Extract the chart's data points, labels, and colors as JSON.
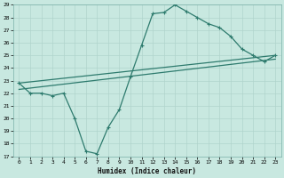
{
  "title": "",
  "xlabel": "Humidex (Indice chaleur)",
  "ylabel": "",
  "bg_color": "#c8e8e0",
  "line_color": "#2e7b6e",
  "grid_color": "#b0d4cc",
  "ylim": [
    17,
    29
  ],
  "xlim": [
    -0.5,
    23.5
  ],
  "yticks": [
    17,
    18,
    19,
    20,
    21,
    22,
    23,
    24,
    25,
    26,
    27,
    28,
    29
  ],
  "xticks": [
    0,
    1,
    2,
    3,
    4,
    5,
    6,
    7,
    8,
    9,
    10,
    11,
    12,
    13,
    14,
    15,
    16,
    17,
    18,
    19,
    20,
    21,
    22,
    23
  ],
  "line1_x": [
    0,
    1,
    2,
    3,
    4,
    5,
    6,
    7,
    8,
    9,
    10,
    11,
    12,
    13,
    14,
    15,
    16,
    17,
    18,
    19,
    20,
    21,
    22,
    23
  ],
  "line1_y": [
    22.8,
    22.0,
    22.0,
    21.8,
    22.0,
    20.0,
    17.4,
    17.2,
    19.3,
    20.7,
    23.3,
    25.8,
    28.3,
    28.4,
    29.0,
    28.5,
    28.0,
    27.5,
    27.2,
    26.5,
    25.5,
    25.0,
    24.5,
    25.0
  ],
  "line2_x": [
    0,
    23
  ],
  "line2_y": [
    22.8,
    25.0
  ],
  "line3_x": [
    0,
    23
  ],
  "line3_y": [
    22.3,
    24.7
  ],
  "marker": "+",
  "markersize": 3,
  "linewidth": 0.9
}
